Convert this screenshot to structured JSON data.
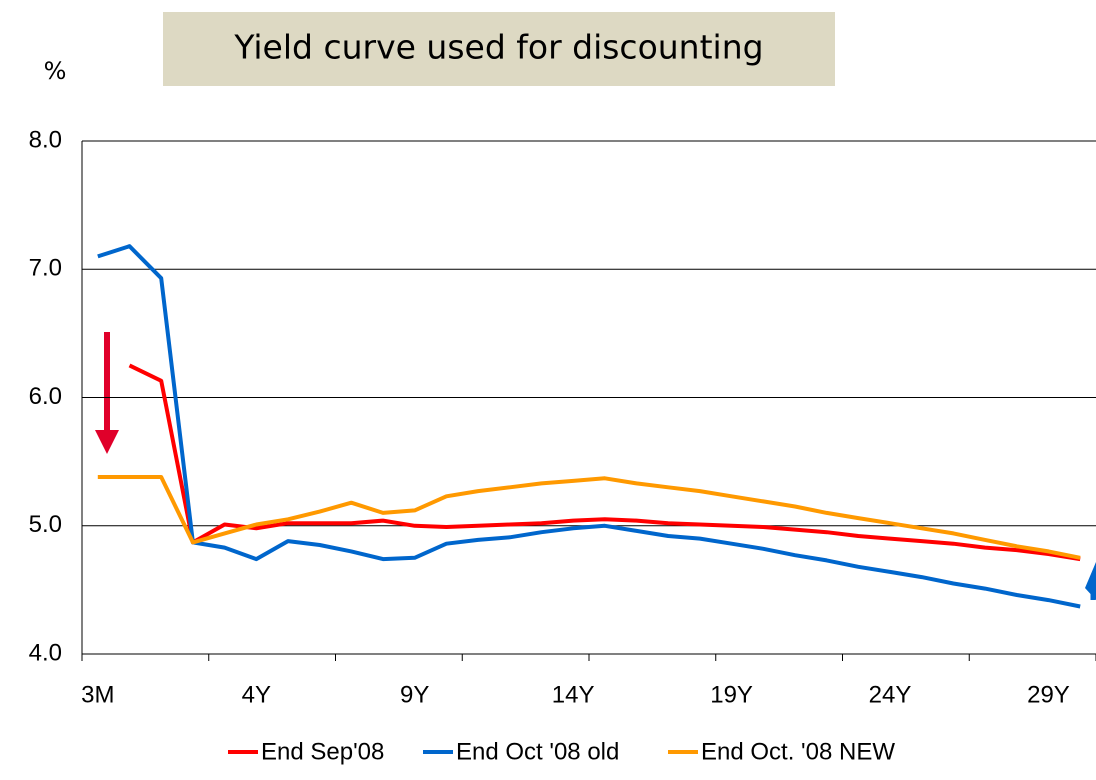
{
  "chart_data": {
    "type": "line",
    "title": "Yield curve used for discounting",
    "y_label": "%",
    "categories": [
      "3M",
      null,
      null,
      null,
      null,
      "4Y",
      null,
      null,
      null,
      null,
      "9Y",
      null,
      null,
      null,
      null,
      "14Y",
      null,
      null,
      null,
      null,
      "19Y",
      null,
      null,
      null,
      null,
      "24Y",
      null,
      null,
      null,
      null,
      "29Y",
      null
    ],
    "series": [
      {
        "name": "End Sep'08",
        "color": "#ff0000",
        "values": [
          null,
          6.25,
          6.13,
          4.87,
          5.01,
          4.98,
          5.02,
          5.02,
          5.02,
          5.04,
          5.0,
          4.99,
          5.0,
          5.01,
          5.02,
          5.04,
          5.05,
          5.04,
          5.02,
          5.01,
          5.0,
          4.99,
          4.97,
          4.95,
          4.92,
          4.9,
          4.88,
          4.86,
          4.83,
          4.81,
          4.78,
          4.74
        ]
      },
      {
        "name": "End Oct '08 old",
        "color": "#0066cc",
        "values": [
          7.1,
          7.18,
          6.93,
          4.87,
          4.83,
          4.74,
          4.88,
          4.85,
          4.8,
          4.74,
          4.75,
          4.86,
          4.89,
          4.91,
          4.95,
          4.98,
          5.0,
          4.96,
          4.92,
          4.9,
          4.86,
          4.82,
          4.77,
          4.73,
          4.68,
          4.64,
          4.6,
          4.55,
          4.51,
          4.46,
          4.42,
          4.37
        ]
      },
      {
        "name": "End Oct. '08 NEW",
        "color": "#ff9900",
        "values": [
          5.38,
          5.38,
          5.38,
          4.87,
          4.94,
          5.01,
          5.05,
          5.11,
          5.18,
          5.1,
          5.12,
          5.23,
          5.27,
          5.3,
          5.33,
          5.35,
          5.37,
          5.33,
          5.3,
          5.27,
          5.23,
          5.19,
          5.15,
          5.1,
          5.06,
          5.02,
          4.98,
          4.94,
          4.89,
          4.84,
          4.8,
          4.75
        ]
      }
    ],
    "ylim": [
      4,
      8
    ],
    "yticks": [
      {
        "value": 4,
        "label": "4.0"
      },
      {
        "value": 5,
        "label": "5.0"
      },
      {
        "value": 6,
        "label": "6.0"
      },
      {
        "value": 7,
        "label": "7.0"
      },
      {
        "value": 8,
        "label": "8.0"
      }
    ],
    "grid": true,
    "legend": "bottom"
  }
}
